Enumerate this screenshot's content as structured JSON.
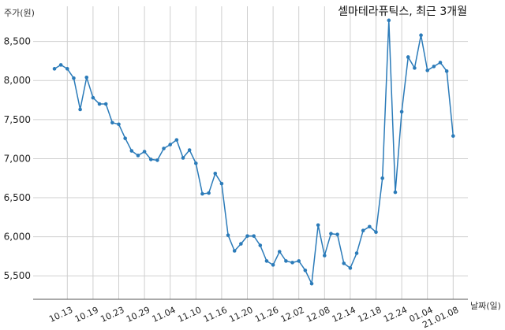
{
  "chart_data": {
    "type": "line",
    "title": "셀마테라퓨틱스, 최근 3개월",
    "ylabel": "주가(원)",
    "xlabel": "날짜(일)",
    "ylim": [
      5200,
      8950
    ],
    "yticks": [
      5500,
      6000,
      6500,
      7000,
      7500,
      8000,
      8500
    ],
    "ytick_labels": [
      "5,500",
      "6,000",
      "6,500",
      "7,000",
      "7,500",
      "8,000",
      "8,500"
    ],
    "xticks": [
      "10.13",
      "10.19",
      "10.23",
      "10.29",
      "11.04",
      "11.10",
      "11.16",
      "11.20",
      "11.26",
      "12.02",
      "12.08",
      "12.14",
      "12.18",
      "12.24",
      "01.04",
      "21.01.08"
    ],
    "xtick_index": [
      2,
      6,
      10,
      14,
      18,
      22,
      26,
      30,
      34,
      38,
      42,
      46,
      50,
      54,
      58,
      62
    ],
    "grid": true,
    "color": "#2b7bb9",
    "series": [
      {
        "values": [
          8150,
          8200,
          8150,
          8030,
          7630,
          8040,
          7780,
          7700,
          7700,
          7460,
          7440,
          7260,
          7100,
          7040,
          7090,
          6990,
          6980,
          7130,
          7180,
          7240,
          7010,
          7110,
          6940,
          6550,
          6560,
          6810,
          6680,
          6020,
          5820,
          5910,
          6010,
          6010,
          5890,
          5690,
          5640,
          5810,
          5690,
          5670,
          5690,
          5570,
          5400,
          6150,
          5760,
          6040,
          6030,
          5660,
          5600,
          5790,
          6080,
          6130,
          6060,
          6750,
          8770,
          6570,
          7600,
          8300,
          8160,
          8580,
          8130,
          8180,
          8230,
          8120,
          7290
        ]
      }
    ]
  }
}
